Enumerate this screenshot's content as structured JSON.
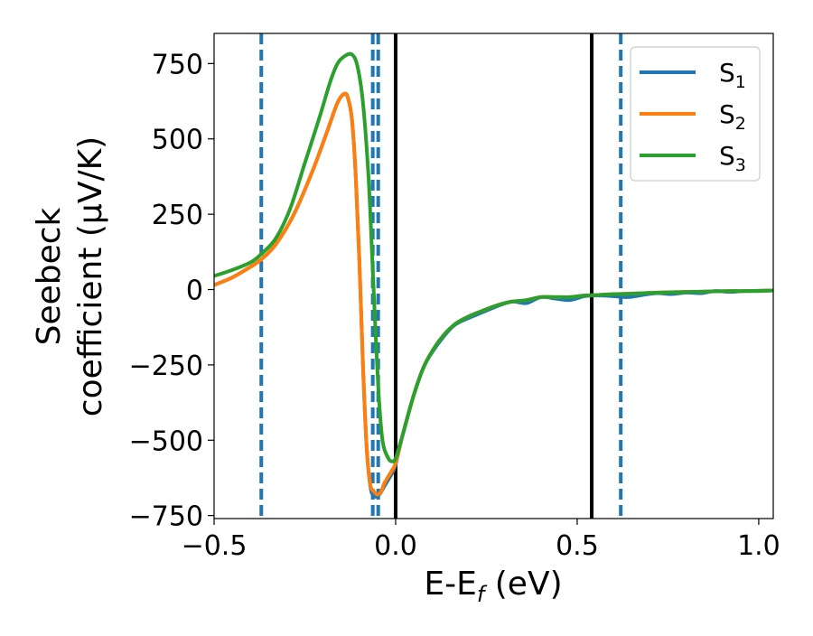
{
  "chart_data": {
    "type": "line",
    "xlabel": "E-E",
    "xlabel_sub": "f",
    "xlabel_unit": " (eV)",
    "ylabel_line1": "Seebeck",
    "ylabel_line2": "coefficient  (μV/K)",
    "xlim": [
      -0.5,
      1.04
    ],
    "ylim": [
      -760,
      850
    ],
    "xticks": [
      {
        "value": -0.5,
        "label": "−0.5"
      },
      {
        "value": 0.0,
        "label": "0.0"
      },
      {
        "value": 0.5,
        "label": "0.5"
      },
      {
        "value": 1.0,
        "label": "1.0"
      }
    ],
    "yticks": [
      {
        "value": 750,
        "label": "750"
      },
      {
        "value": 500,
        "label": "500"
      },
      {
        "value": 250,
        "label": "250"
      },
      {
        "value": 0,
        "label": "0"
      },
      {
        "value": -250,
        "label": "−250"
      },
      {
        "value": -500,
        "label": "−500"
      },
      {
        "value": -750,
        "label": "−750"
      }
    ],
    "grid": false,
    "legend_position": "top-right",
    "vlines": [
      {
        "x": -0.37,
        "style": "dashed",
        "color": "#1f77b4"
      },
      {
        "x": -0.063,
        "style": "dashed",
        "color": "#1f77b4"
      },
      {
        "x": -0.048,
        "style": "dashed",
        "color": "#1f77b4"
      },
      {
        "x": 0.0,
        "style": "solid",
        "color": "#000000"
      },
      {
        "x": 0.54,
        "style": "solid",
        "color": "#000000"
      },
      {
        "x": 0.62,
        "style": "dashed",
        "color": "#1f77b4"
      }
    ],
    "series": [
      {
        "name": "S",
        "sub": "1",
        "color": "#1f77b4",
        "points": [
          [
            -0.5,
            15
          ],
          [
            -0.45,
            40
          ],
          [
            -0.4,
            75
          ],
          [
            -0.37,
            100
          ],
          [
            -0.33,
            150
          ],
          [
            -0.28,
            250
          ],
          [
            -0.23,
            390
          ],
          [
            -0.19,
            520
          ],
          [
            -0.16,
            620
          ],
          [
            -0.14,
            650
          ],
          [
            -0.13,
            630
          ],
          [
            -0.12,
            560
          ],
          [
            -0.11,
            380
          ],
          [
            -0.1,
            100
          ],
          [
            -0.09,
            -250
          ],
          [
            -0.08,
            -520
          ],
          [
            -0.07,
            -650
          ],
          [
            -0.06,
            -685
          ],
          [
            -0.045,
            -680
          ],
          [
            -0.03,
            -650
          ],
          [
            -0.01,
            -610
          ],
          [
            0.0,
            -580
          ],
          [
            0.02,
            -480
          ],
          [
            0.05,
            -350
          ],
          [
            0.08,
            -250
          ],
          [
            0.12,
            -175
          ],
          [
            0.16,
            -120
          ],
          [
            0.2,
            -95
          ],
          [
            0.24,
            -75
          ],
          [
            0.28,
            -55
          ],
          [
            0.32,
            -40
          ],
          [
            0.36,
            -45
          ],
          [
            0.4,
            -25
          ],
          [
            0.44,
            -30
          ],
          [
            0.48,
            -35
          ],
          [
            0.52,
            -22
          ],
          [
            0.56,
            -20
          ],
          [
            0.6,
            -22
          ],
          [
            0.64,
            -25
          ],
          [
            0.68,
            -18
          ],
          [
            0.72,
            -12
          ],
          [
            0.76,
            -15
          ],
          [
            0.8,
            -10
          ],
          [
            0.84,
            -12
          ],
          [
            0.88,
            -5
          ],
          [
            0.92,
            -8
          ],
          [
            0.96,
            -5
          ],
          [
            1.0,
            -5
          ],
          [
            1.04,
            -3
          ]
        ]
      },
      {
        "name": "S",
        "sub": "2",
        "color": "#ff7f0e",
        "points": [
          [
            -0.5,
            15
          ],
          [
            -0.45,
            40
          ],
          [
            -0.4,
            75
          ],
          [
            -0.37,
            100
          ],
          [
            -0.33,
            150
          ],
          [
            -0.28,
            250
          ],
          [
            -0.23,
            390
          ],
          [
            -0.19,
            520
          ],
          [
            -0.16,
            620
          ],
          [
            -0.14,
            650
          ],
          [
            -0.13,
            630
          ],
          [
            -0.12,
            560
          ],
          [
            -0.11,
            380
          ],
          [
            -0.1,
            100
          ],
          [
            -0.09,
            -250
          ],
          [
            -0.08,
            -520
          ],
          [
            -0.07,
            -645
          ],
          [
            -0.06,
            -670
          ],
          [
            -0.05,
            -680
          ],
          [
            -0.04,
            -670
          ],
          [
            -0.03,
            -640
          ],
          [
            -0.01,
            -600
          ],
          [
            0.0,
            -575
          ],
          [
            0.02,
            -480
          ],
          [
            0.05,
            -350
          ],
          [
            0.08,
            -250
          ],
          [
            0.12,
            -170
          ],
          [
            0.16,
            -118
          ],
          [
            0.2,
            -90
          ],
          [
            0.24,
            -70
          ],
          [
            0.28,
            -52
          ],
          [
            0.32,
            -40
          ],
          [
            0.36,
            -35
          ],
          [
            0.4,
            -25
          ],
          [
            0.44,
            -25
          ],
          [
            0.48,
            -25
          ],
          [
            0.52,
            -20
          ],
          [
            0.56,
            -18
          ],
          [
            0.6,
            -15
          ],
          [
            0.64,
            -14
          ],
          [
            0.68,
            -12
          ],
          [
            0.72,
            -10
          ],
          [
            0.76,
            -9
          ],
          [
            0.8,
            -8
          ],
          [
            0.84,
            -7
          ],
          [
            0.88,
            -6
          ],
          [
            0.92,
            -5
          ],
          [
            0.96,
            -5
          ],
          [
            1.0,
            -4
          ],
          [
            1.04,
            -3
          ]
        ]
      },
      {
        "name": "S",
        "sub": "3",
        "color": "#2ca02c",
        "points": [
          [
            -0.5,
            45
          ],
          [
            -0.45,
            65
          ],
          [
            -0.4,
            90
          ],
          [
            -0.37,
            118
          ],
          [
            -0.33,
            170
          ],
          [
            -0.29,
            270
          ],
          [
            -0.25,
            420
          ],
          [
            -0.21,
            570
          ],
          [
            -0.18,
            690
          ],
          [
            -0.16,
            750
          ],
          [
            -0.14,
            775
          ],
          [
            -0.12,
            780
          ],
          [
            -0.105,
            740
          ],
          [
            -0.09,
            620
          ],
          [
            -0.075,
            380
          ],
          [
            -0.065,
            120
          ],
          [
            -0.055,
            -150
          ],
          [
            -0.045,
            -380
          ],
          [
            -0.035,
            -510
          ],
          [
            -0.02,
            -560
          ],
          [
            -0.01,
            -570
          ],
          [
            0.0,
            -560
          ],
          [
            0.02,
            -480
          ],
          [
            0.05,
            -350
          ],
          [
            0.08,
            -250
          ],
          [
            0.12,
            -170
          ],
          [
            0.16,
            -118
          ],
          [
            0.2,
            -90
          ],
          [
            0.24,
            -70
          ],
          [
            0.28,
            -52
          ],
          [
            0.32,
            -40
          ],
          [
            0.36,
            -35
          ],
          [
            0.4,
            -25
          ],
          [
            0.44,
            -25
          ],
          [
            0.48,
            -25
          ],
          [
            0.52,
            -20
          ],
          [
            0.56,
            -18
          ],
          [
            0.6,
            -15
          ],
          [
            0.64,
            -14
          ],
          [
            0.68,
            -12
          ],
          [
            0.72,
            -10
          ],
          [
            0.76,
            -9
          ],
          [
            0.8,
            -8
          ],
          [
            0.84,
            -7
          ],
          [
            0.88,
            -6
          ],
          [
            0.92,
            -5
          ],
          [
            0.96,
            -5
          ],
          [
            1.0,
            -4
          ],
          [
            1.04,
            -3
          ]
        ]
      }
    ]
  }
}
